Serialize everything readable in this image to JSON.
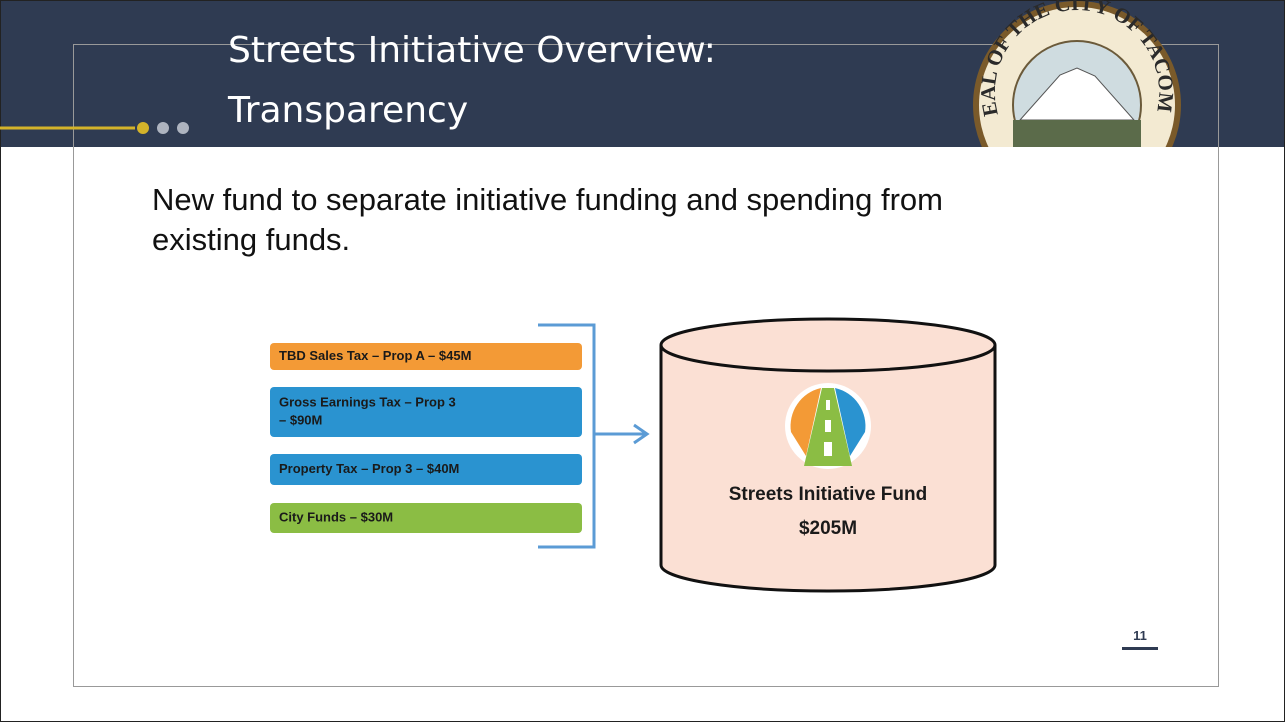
{
  "header": {
    "title_lines": [
      "Streets Initiative Overview:",
      "Transparency"
    ],
    "seal_text": "SEAL OF THE CITY OF TACOMA"
  },
  "body": {
    "text_lines": [
      "New fund to separate initiative funding and spending from",
      "existing funds."
    ]
  },
  "sources": [
    {
      "lines": [
        "TBD Sales Tax – Prop A – $45M"
      ],
      "color": "#f39a36"
    },
    {
      "lines": [
        "Gross Earnings Tax – Prop 3",
        "– $90M"
      ],
      "color": "#2a93d0"
    },
    {
      "lines": [
        "Property Tax – Prop 3 – $40M"
      ],
      "color": "#2a93d0"
    },
    {
      "lines": [
        "City Funds – $30M"
      ],
      "color": "#8bbd44"
    }
  ],
  "fund": {
    "name": "Streets Initiative Fund",
    "amount": "$205M"
  },
  "page_number": "11"
}
